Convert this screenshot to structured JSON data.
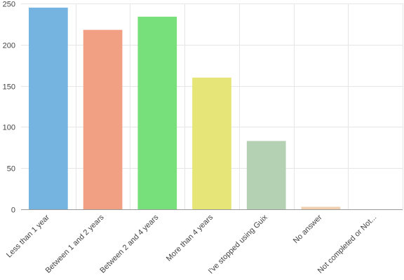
{
  "chart_data": {
    "type": "bar",
    "title": "",
    "xlabel": "",
    "ylabel": "",
    "ylim": [
      0,
      250
    ],
    "yticks": [
      0,
      50,
      100,
      150,
      200,
      250
    ],
    "grid": true,
    "legend": "none",
    "categories": [
      "Less than 1 year",
      "Between 1 and 2 years",
      "Between 2 and 4 years",
      "More than 4 years",
      "I've stopped using Guix",
      "No answer",
      "Not completed or Not..."
    ],
    "values": [
      245,
      218,
      234,
      160,
      83,
      3,
      0
    ],
    "colors": [
      "#75b3e0",
      "#f2a084",
      "#77e07a",
      "#e6e578",
      "#b5d1b3",
      "#f0ceb0",
      "#cccccc"
    ]
  }
}
